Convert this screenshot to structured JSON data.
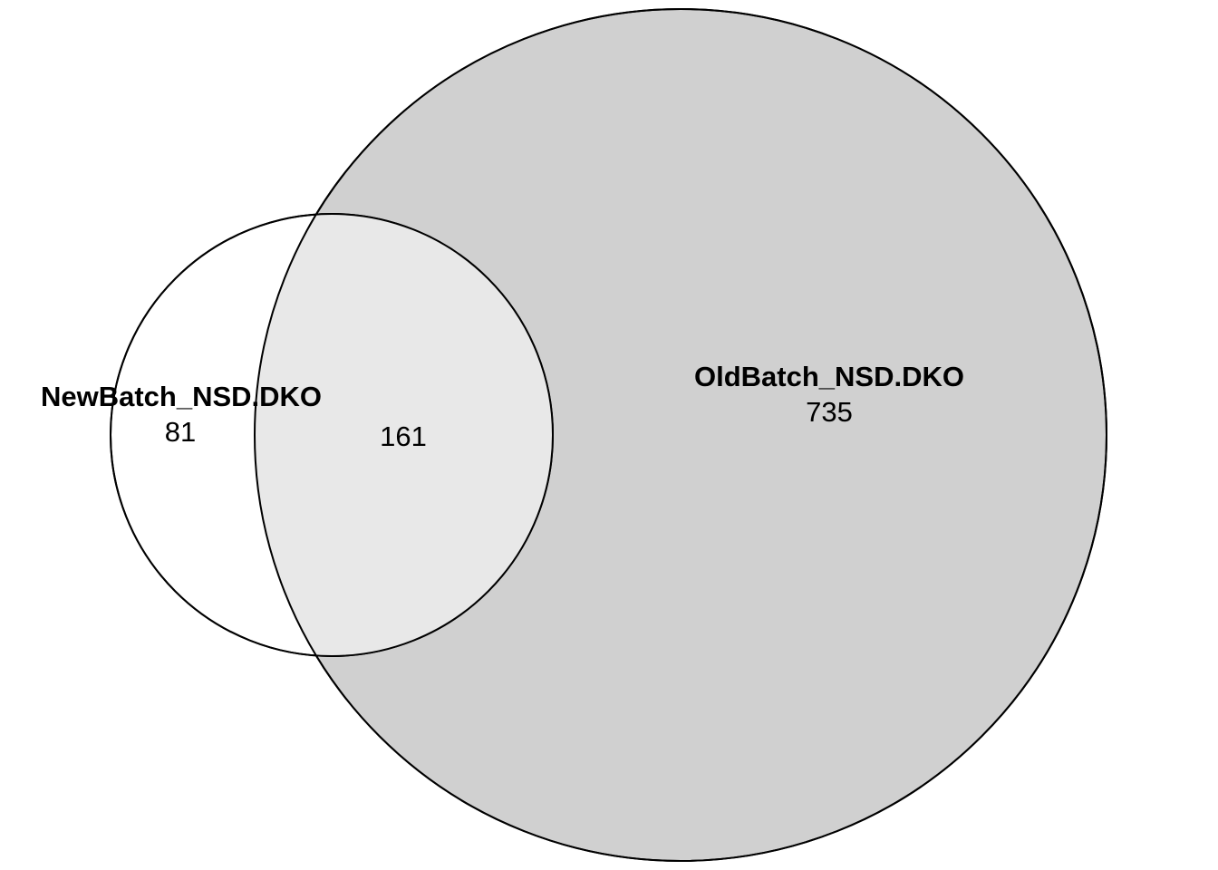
{
  "diagram": {
    "type": "venn",
    "sets": [
      {
        "name": "NewBatch_NSD.DKO",
        "only_count": "81"
      },
      {
        "name": "OldBatch_NSD.DKO",
        "only_count": "735"
      }
    ],
    "intersection_count": "161",
    "colors": {
      "new_only_fill": "#ffffff",
      "old_fill": "#d0d0d0",
      "intersection_fill": "#e8e8e8",
      "stroke": "#000000"
    }
  }
}
